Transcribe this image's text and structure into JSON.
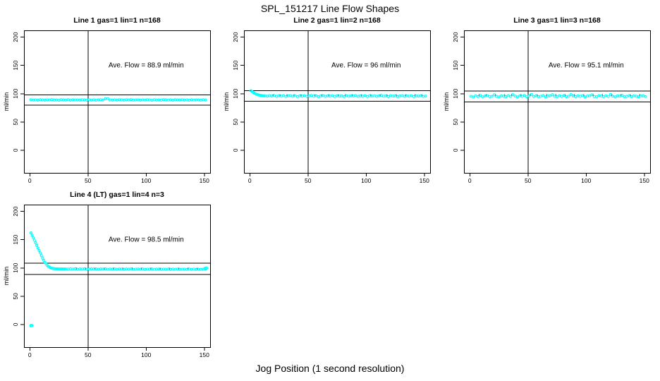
{
  "figure": {
    "title": "SPL_151217  Line Flow Shapes",
    "xlabel": "Jog Position (1 second resolution)",
    "ylabel": "ml/min",
    "point_color": "#00ffff",
    "line_color": "#000000",
    "dark_mark_color": "#3191a8",
    "background": "#ffffff"
  },
  "chart_data": [
    {
      "type": "scatter",
      "title": "Line 1 gas=1 lin=1 n=168",
      "annotation": "Ave. Flow =  88.9  ml/min",
      "avg_flow_ml_min": 88.9,
      "x_ticks": [
        0,
        50,
        100,
        150
      ],
      "y_ticks": [
        0,
        50,
        100,
        150,
        200
      ],
      "xlim": [
        -5,
        155
      ],
      "ylim": [
        -40,
        212
      ],
      "ref_hlines": [
        97.8,
        80.0
      ],
      "ref_vline": 50,
      "annotation_xy": [
        100,
        150
      ],
      "series": [
        {
          "x0": 1,
          "dx": 2,
          "y": [
            89.3,
            88.8,
            89.1,
            88.6,
            89.4,
            89.0,
            88.7,
            89.2,
            88.9,
            89.5,
            88.7,
            89.1,
            88.5,
            89.3,
            89.0,
            88.8,
            89.4,
            88.6,
            89.2,
            88.9,
            89.1,
            88.7,
            89.3,
            89.0,
            88.6,
            89.4,
            88.8,
            89.2,
            88.5,
            89.1,
            89.6,
            88.9,
            90.9,
            91.3,
            89.0,
            88.7,
            89.2,
            88.8,
            89.4,
            89.1,
            88.6,
            89.3,
            88.9,
            89.5,
            88.7,
            89.0,
            89.2,
            88.6,
            89.1,
            88.8,
            89.4,
            89.0,
            88.5,
            89.3,
            88.9,
            89.1,
            88.7,
            89.5,
            89.0,
            88.8,
            89.2,
            88.6,
            89.3,
            89.1,
            88.9,
            89.4,
            88.7,
            89.0,
            88.5,
            89.2,
            88.8,
            89.1,
            89.0,
            88.6,
            89.3,
            88.9
          ]
        }
      ],
      "extra_points": [],
      "dark_marks": []
    },
    {
      "type": "scatter",
      "title": "Line 2 gas=1 lin=2 n=168",
      "annotation": "Ave. Flow =  96  ml/min",
      "avg_flow_ml_min": 96,
      "x_ticks": [
        0,
        50,
        100,
        150
      ],
      "y_ticks": [
        0,
        50,
        100,
        150,
        200
      ],
      "xlim": [
        -5,
        155
      ],
      "ylim": [
        -40,
        212
      ],
      "ref_hlines": [
        105.6,
        86.4
      ],
      "ref_vline": 50,
      "annotation_xy": [
        100,
        150
      ],
      "series": [
        {
          "x0": 1,
          "dx": 1,
          "y": [
            105.2,
            103.6,
            102.1,
            100.8,
            99.7,
            98.8,
            98.1,
            97.5,
            97.0,
            96.7,
            96.4,
            96.2
          ]
        },
        {
          "x0": 13,
          "dx": 2,
          "y": [
            96.1,
            95.6,
            96.4,
            95.9,
            96.7,
            95.4,
            96.2,
            95.8,
            96.5,
            95.2,
            96.0,
            96.6,
            95.5,
            96.3,
            94.9,
            96.1,
            95.7,
            96.4,
            95.3,
            96.0,
            96.8,
            95.6,
            96.2,
            94.8,
            95.9,
            96.5,
            95.4,
            96.1,
            95.8,
            96.6,
            95.1,
            96.3,
            95.7,
            96.0,
            94.9,
            96.4,
            95.5,
            96.2,
            95.9,
            96.7,
            95.3,
            96.0,
            95.6,
            96.5,
            95.0,
            96.2,
            95.8,
            96.3,
            95.4,
            96.1,
            96.9,
            95.5,
            96.0,
            94.8,
            96.4,
            95.7,
            96.2,
            95.1,
            95.9,
            96.6,
            95.3,
            96.1,
            95.6,
            96.3,
            94.9,
            96.0,
            95.7,
            96.4,
            95.2,
            95.8
          ]
        }
      ],
      "extra_points": [],
      "dark_marks": [
        [
          20,
          97.3
        ],
        [
          26,
          97.3
        ],
        [
          32,
          97.3
        ],
        [
          38,
          97.3
        ],
        [
          44,
          97.3
        ],
        [
          50,
          97.3
        ],
        [
          56,
          97.3
        ],
        [
          62,
          97.3
        ],
        [
          68,
          97.3
        ],
        [
          76,
          97.3
        ],
        [
          82,
          97.3
        ],
        [
          88,
          97.3
        ],
        [
          96,
          97.3
        ],
        [
          104,
          97.3
        ],
        [
          112,
          97.3
        ],
        [
          118,
          97.3
        ],
        [
          126,
          97.3
        ],
        [
          134,
          97.3
        ],
        [
          142,
          97.3
        ],
        [
          148,
          97.3
        ]
      ]
    },
    {
      "type": "scatter",
      "title": "Line 3 gas=1 lin=3 n=168",
      "annotation": "Ave. Flow =  95.1  ml/min",
      "avg_flow_ml_min": 95.1,
      "x_ticks": [
        0,
        50,
        100,
        150
      ],
      "y_ticks": [
        0,
        50,
        100,
        150,
        200
      ],
      "xlim": [
        -5,
        155
      ],
      "ylim": [
        -40,
        212
      ],
      "ref_hlines": [
        104.6,
        85.6
      ],
      "ref_vline": 50,
      "annotation_xy": [
        100,
        150
      ],
      "series": [
        {
          "x0": 1,
          "dx": 2,
          "y": [
            95.5,
            94.2,
            96.3,
            95.0,
            96.8,
            94.5,
            95.8,
            96.4,
            94.8,
            95.3,
            97.9,
            95.1,
            94.4,
            96.0,
            95.6,
            94.7,
            96.5,
            95.2,
            98.3,
            95.7,
            94.3,
            96.1,
            95.4,
            96.9,
            94.6,
            95.9,
            98.6,
            95.0,
            96.3,
            94.9,
            95.5,
            96.7,
            94.4,
            95.8,
            96.2,
            98.1,
            95.3,
            94.7,
            96.4,
            95.1,
            96.8,
            94.5,
            95.6,
            98.4,
            95.9,
            94.8,
            96.1,
            95.4,
            96.6,
            94.3,
            95.7,
            96.2,
            98.0,
            95.0,
            94.6,
            96.5,
            95.8,
            94.9,
            96.3,
            95.2,
            98.5,
            95.5,
            94.4,
            96.0,
            95.7,
            96.8,
            94.7,
            95.3,
            96.4,
            94.8,
            96.1,
            95.6,
            94.5,
            95.9,
            96.2,
            95.0
          ]
        }
      ],
      "extra_points": [],
      "dark_marks": [
        [
          8,
          97.6
        ],
        [
          14,
          97.4
        ],
        [
          22,
          97.7
        ],
        [
          30,
          97.5
        ],
        [
          36,
          97.8
        ],
        [
          44,
          97.5
        ],
        [
          52,
          97.7
        ],
        [
          58,
          97.4
        ],
        [
          66,
          97.6
        ],
        [
          74,
          97.8
        ],
        [
          82,
          97.5
        ],
        [
          90,
          97.7
        ],
        [
          98,
          97.4
        ],
        [
          106,
          97.6
        ],
        [
          114,
          97.8
        ],
        [
          122,
          97.5
        ],
        [
          130,
          97.6
        ],
        [
          138,
          97.4
        ],
        [
          146,
          97.7
        ]
      ]
    },
    {
      "type": "scatter",
      "title": "Line 4 (LT) gas=1 lin=4 n=3",
      "annotation": "Ave. Flow =  98.5  ml/min",
      "avg_flow_ml_min": 98.5,
      "x_ticks": [
        0,
        50,
        100,
        150
      ],
      "y_ticks": [
        0,
        50,
        100,
        150,
        200
      ],
      "xlim": [
        -5,
        155
      ],
      "ylim": [
        -40,
        212
      ],
      "ref_hlines": [
        108.4,
        88.7
      ],
      "ref_vline": 50,
      "annotation_xy": [
        100,
        150
      ],
      "series": [
        {
          "x0": 1,
          "dx": 1,
          "y": [
            162.0,
            158.0,
            153.5,
            149.0,
            144.5,
            140.0,
            135.5,
            131.0,
            126.5,
            122.0,
            117.5,
            113.5,
            110.0,
            107.0,
            104.5,
            102.7,
            101.3,
            100.3,
            99.6,
            99.1,
            98.8,
            98.6,
            98.5,
            98.4,
            98.3,
            98.3,
            98.2,
            98.2,
            98.2,
            98.1
          ]
        },
        {
          "x0": 31,
          "dx": 2,
          "y": [
            98.3,
            97.9,
            98.4,
            98.0,
            98.5,
            97.8,
            98.2,
            98.0,
            98.4,
            97.7,
            98.1,
            98.3,
            97.9,
            98.2,
            97.8,
            98.3,
            98.0,
            98.4,
            97.7,
            98.1,
            97.9,
            98.3,
            97.8,
            98.2,
            98.0,
            97.6,
            98.2,
            97.9,
            98.3,
            97.7,
            98.0,
            98.2,
            97.8,
            98.1,
            97.6,
            98.0,
            97.8,
            98.2,
            97.7,
            97.9,
            98.1,
            97.6,
            98.0,
            97.7,
            98.1,
            97.5,
            97.9,
            97.7,
            98.0,
            97.6,
            97.8,
            98.0,
            97.5,
            97.9,
            97.6,
            98.0,
            97.4,
            97.8,
            97.6,
            97.9,
            98.2
          ]
        }
      ],
      "extra_points": [
        [
          1,
          -2
        ],
        [
          1.8,
          -1.8
        ],
        [
          150.5,
          99.0
        ],
        [
          152,
          99.7
        ]
      ],
      "dark_marks": [
        [
          40,
          99.0
        ],
        [
          48,
          98.9
        ],
        [
          56,
          99.0
        ],
        [
          64,
          98.8
        ],
        [
          72,
          99.0
        ],
        [
          80,
          98.9
        ],
        [
          88,
          99.1
        ],
        [
          96,
          98.9
        ],
        [
          104,
          99.0
        ],
        [
          112,
          98.8
        ],
        [
          120,
          99.0
        ],
        [
          128,
          98.9
        ],
        [
          136,
          99.0
        ],
        [
          144,
          98.8
        ]
      ]
    }
  ]
}
